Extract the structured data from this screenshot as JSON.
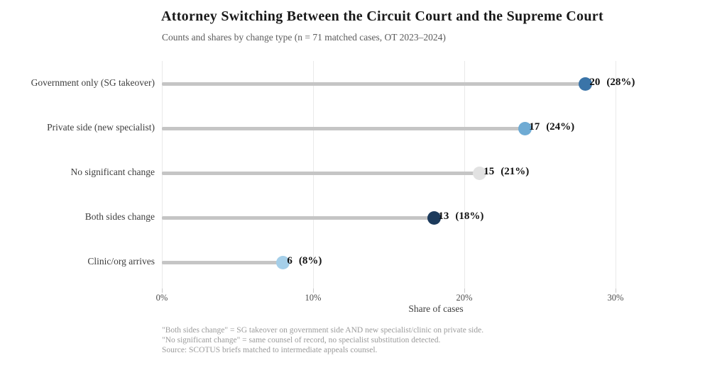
{
  "header": {
    "title": "Attorney Switching Between the Circuit Court and the Supreme Court",
    "subtitle": "Counts and shares by change type (n = 71 matched cases, OT 2023–2024)"
  },
  "chart_data": {
    "type": "bar",
    "variant": "horizontal-lollipop",
    "title": "Attorney Switching Between the Circuit Court and the Supreme Court",
    "subtitle": "Counts and shares by change type (n = 71 matched cases, OT 2023–2024)",
    "categories": [
      "Government only (SG takeover)",
      "Private side (new specialist)",
      "No significant change",
      "Both sides change",
      "Clinic/org arrives"
    ],
    "series": [
      {
        "name": "count",
        "values": [
          20,
          17,
          15,
          13,
          6
        ]
      },
      {
        "name": "share_pct",
        "values": [
          28,
          24,
          21,
          18,
          8
        ]
      }
    ],
    "value_labels": [
      "20",
      "17",
      "15",
      "13",
      "6"
    ],
    "share_labels": [
      "(28%)",
      "(24%)",
      "(21%)",
      "(18%)",
      "(8%)"
    ],
    "dot_colors": [
      "#3a74a8",
      "#6fabd4",
      "#e2e2e2",
      "#1c3a5c",
      "#a5cfe9"
    ],
    "stem_color": "#c5c5c5",
    "gridline_color": "#e9e9e9",
    "xlabel": "Share of cases",
    "x_ticks": [
      {
        "value": 0,
        "label": "0%"
      },
      {
        "value": 10,
        "label": "10%"
      },
      {
        "value": 20,
        "label": "20%"
      },
      {
        "value": 30,
        "label": "30%"
      }
    ],
    "xlim": [
      0,
      36
    ],
    "grid": "vertical-only",
    "legend": "none"
  },
  "footnotes": {
    "lines": [
      "\"Both sides change\" = SG takeover on government side AND new specialist/clinic on private side.",
      "\"No significant change\" = same counsel of record, no specialist substitution detected.",
      "Source: SCOTUS briefs matched to intermediate appeals counsel."
    ]
  }
}
